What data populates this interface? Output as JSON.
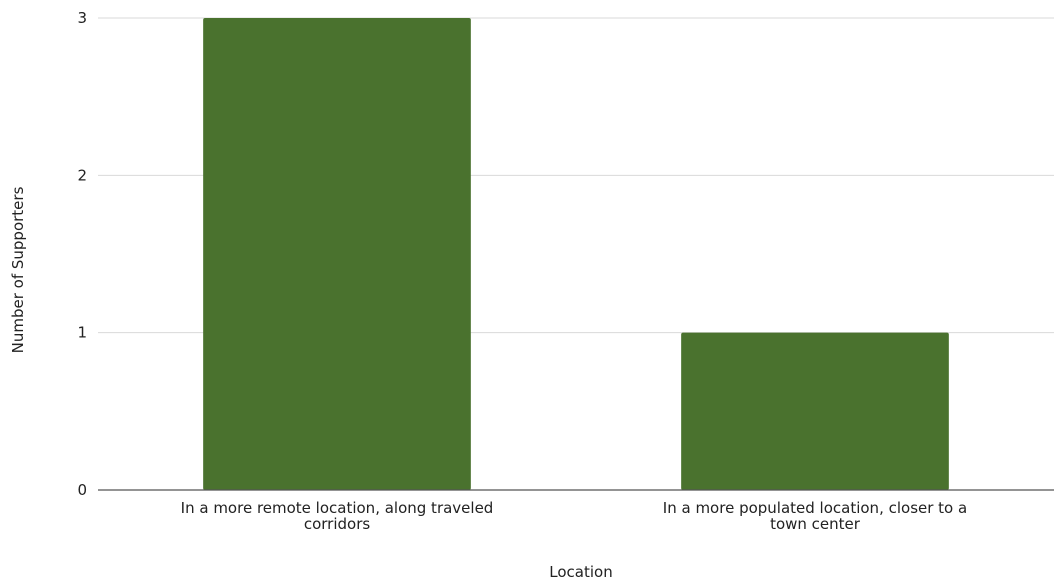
{
  "chart_data": {
    "type": "bar",
    "categories": [
      "In a more remote location, along traveled corridors",
      "In a more populated location, closer to a town center"
    ],
    "category_label_lines": [
      [
        "In a more remote location, along traveled",
        "corridors"
      ],
      [
        "In a more populated location, closer to a",
        "town center"
      ]
    ],
    "series": [
      {
        "values": [
          3,
          1
        ]
      }
    ],
    "title": "",
    "xlabel": "Location",
    "ylabel": "Number of Supporters",
    "ylim": [
      0,
      3
    ],
    "yticks": [
      "0",
      "1",
      "2",
      "3"
    ],
    "grid": true,
    "legend": "none",
    "colors": {
      "bar": "#4a722e",
      "grid": "#d9d9d9",
      "axis": "#555555",
      "text": "#222222"
    }
  }
}
